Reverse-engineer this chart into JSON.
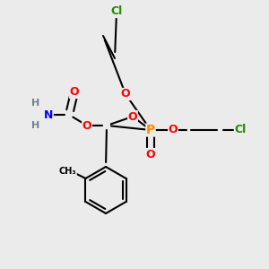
{
  "background_color": "#ebebeb",
  "atom_colors": {
    "C": "#000000",
    "H": "#708090",
    "N": "#0000FF",
    "O": "#FF0000",
    "P": "#FF8C00",
    "Cl": "#228B00"
  },
  "bond_color": "#000000",
  "bond_lw": 1.5,
  "fig_size": [
    3.0,
    3.0
  ],
  "dpi": 100
}
